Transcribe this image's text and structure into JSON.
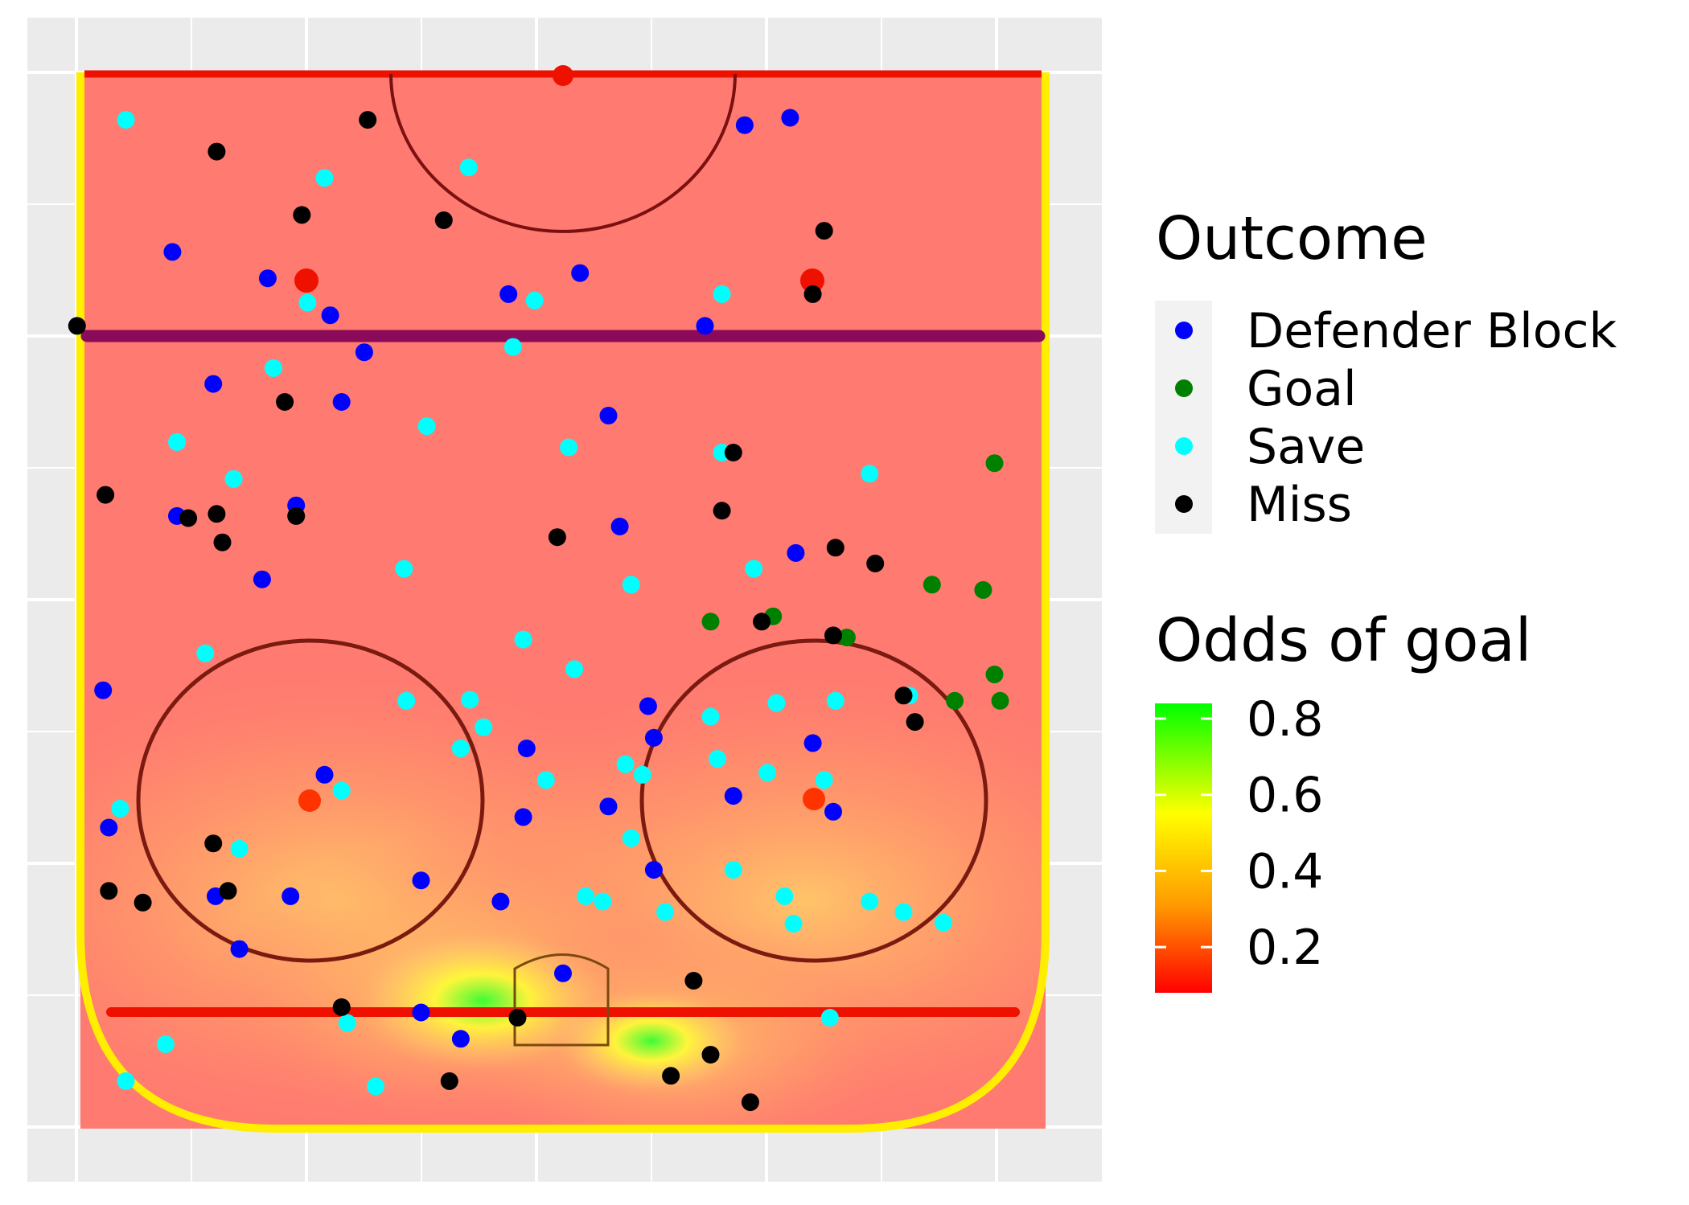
{
  "chart_data": {
    "type": "scatter",
    "title": "",
    "xlabel": "",
    "ylabel": "",
    "xlim": [
      -100,
      0
    ],
    "ylim": [
      -42.5,
      42.5
    ],
    "grid": true,
    "legend_position": "right",
    "background": "Odds of goal heatmap over the offensive zone of a hockey rink",
    "colors": {
      "Defender Block": "#0000ff",
      "Goal": "#008000",
      "Save": "#00ffff",
      "Miss": "#000000"
    },
    "series": [
      {
        "name": "Defender Block",
        "points": [
          [
            -80.5,
            -26.0
          ],
          [
            -58,
            -34
          ],
          [
            -41.5,
            -40.5
          ],
          [
            -52,
            -26.5
          ],
          [
            -83,
            -34.4
          ],
          [
            -70.5,
            -30.8
          ],
          [
            -22,
            -24
          ],
          [
            -23.5,
            -12.5
          ],
          [
            -68.8,
            -19.5
          ],
          [
            -77,
            -20.5
          ],
          [
            -59,
            -23.5
          ],
          [
            -79,
            -4.8
          ],
          [
            -57,
            5
          ],
          [
            -33.5,
            -21
          ],
          [
            -73.5,
            -17.5
          ],
          [
            -81,
            1.5
          ],
          [
            -67.5,
            4
          ],
          [
            -76,
            12.5
          ],
          [
            -95,
            16
          ],
          [
            -40,
            7.5
          ],
          [
            -95.7,
            20
          ],
          [
            -54.5,
            20.5
          ],
          [
            -37,
            8
          ],
          [
            -31.5,
            15
          ],
          [
            -30,
            23.8
          ],
          [
            -24.5,
            8
          ],
          [
            -36.5,
            22
          ],
          [
            -30.5,
            4
          ],
          [
            -17,
            -28.5
          ],
          [
            -28.5,
            -40
          ],
          [
            -22,
            -30.6
          ],
          [
            -11,
            -12.5
          ],
          [
            -36,
            -3.2
          ],
          [
            -29.5,
            -3.5
          ],
          [
            -21.5,
            -5.5
          ],
          [
            -8.5,
            -9.0
          ],
          [
            -14.7,
            0
          ]
        ]
      },
      {
        "name": "Goal",
        "points": [
          [
            -46.5,
            25
          ],
          [
            -48.5,
            18.5
          ],
          [
            -51.5,
            32.5
          ],
          [
            -63,
            38
          ],
          [
            -40.5,
            38.5
          ],
          [
            -40.5,
            34.5
          ],
          [
            -43,
            38
          ],
          [
            -51,
            37
          ],
          [
            -48,
            13
          ]
        ]
      },
      {
        "name": "Save",
        "points": [
          [
            -95.5,
            -38.5
          ],
          [
            -65,
            -34
          ],
          [
            -61.5,
            -29
          ],
          [
            -72,
            -25.5
          ],
          [
            -78.2,
            -22.5
          ],
          [
            -90,
            -21
          ],
          [
            -66.5,
            -12
          ],
          [
            -91,
            -8.3
          ],
          [
            -74,
            -4.4
          ],
          [
            -78.4,
            -2.5
          ],
          [
            -64.5,
            0.5
          ],
          [
            -51.5,
            6
          ],
          [
            -43.5,
            1
          ],
          [
            -79,
            14
          ],
          [
            -64,
            14
          ],
          [
            -62,
            27
          ],
          [
            -40.5,
            24
          ],
          [
            -27.5,
            6
          ],
          [
            -39,
            13
          ],
          [
            -53,
            16.8
          ],
          [
            -38,
            -7
          ],
          [
            -36,
            -9
          ],
          [
            -40.5,
            -13.8
          ],
          [
            -45,
            -31.5
          ],
          [
            -53,
            -14
          ],
          [
            -41,
            30.5
          ],
          [
            -30.3,
            -39
          ],
          [
            -26.5,
            -28.5
          ],
          [
            -8,
            -35
          ],
          [
            -4.5,
            -38.5
          ],
          [
            -46.3,
            -3.5
          ],
          [
            -40.6,
            -8.2
          ],
          [
            -33,
            -1.5
          ],
          [
            -10,
            -19
          ],
          [
            -4,
            -16.5
          ],
          [
            -32,
            -19.5
          ],
          [
            -34.5,
            5.5
          ],
          [
            -33.5,
            7
          ],
          [
            -35,
            13.6
          ],
          [
            -40.3,
            18.8
          ],
          [
            -33.7,
            18.0
          ],
          [
            -33,
            23
          ],
          [
            -24.5,
            15
          ],
          [
            -22,
            2
          ],
          [
            -21.5,
            3.5
          ],
          [
            -20.5,
            9
          ],
          [
            -22,
            19.5
          ],
          [
            -21.5,
            27
          ],
          [
            -20.5,
            30
          ],
          [
            -19.5,
            33.5
          ],
          [
            -19.4,
            20.3
          ],
          [
            -10.5,
            23.5
          ]
        ]
      },
      {
        "name": "Miss",
        "points": [
          [
            -92.5,
            -30.5
          ],
          [
            -76,
            -42.8
          ],
          [
            -68.8,
            -24.5
          ],
          [
            -58.2,
            -30.5
          ],
          [
            -55.5,
            -30
          ],
          [
            -60,
            -40.3
          ],
          [
            -57.8,
            -33.0
          ],
          [
            -86,
            -10.5
          ],
          [
            -95.5,
            -17.2
          ],
          [
            -86.5,
            -23
          ],
          [
            -56,
            -0.5
          ],
          [
            -58,
            -23.5
          ],
          [
            -48,
            17.5
          ],
          [
            -58.5,
            14
          ],
          [
            -53.5,
            27.5
          ],
          [
            -64,
            15
          ],
          [
            -85,
            23
          ],
          [
            -79,
            22
          ],
          [
            -55,
            24
          ],
          [
            -46.7,
            23.8
          ],
          [
            -41,
            30
          ],
          [
            -38.5,
            31
          ],
          [
            -22.5,
            -29.5
          ],
          [
            -21.4,
            -37
          ],
          [
            -22.5,
            -40
          ],
          [
            -27,
            -30.8
          ],
          [
            -11.5,
            -19.5
          ],
          [
            -4.5,
            -10
          ],
          [
            -10.5,
            -4
          ],
          [
            -5,
            9.5
          ],
          [
            -2.5,
            16.5
          ],
          [
            -14,
            11.5
          ],
          [
            -7,
            13
          ]
        ]
      }
    ],
    "legend": {
      "outcome_title": "Outcome",
      "outcome_entries": [
        "Defender Block",
        "Goal",
        "Save",
        "Miss"
      ],
      "gradient_title": "Odds of goal",
      "gradient_ticks": [
        "0.8",
        "0.6",
        "0.4",
        "0.2"
      ],
      "gradient_tick_values": [
        0.8,
        0.6,
        0.4,
        0.2
      ],
      "gradient_range": [
        0.08,
        0.84
      ],
      "gradient_colors": [
        "#ff0000",
        "#ff9900",
        "#ffff00",
        "#00ff00"
      ]
    }
  }
}
